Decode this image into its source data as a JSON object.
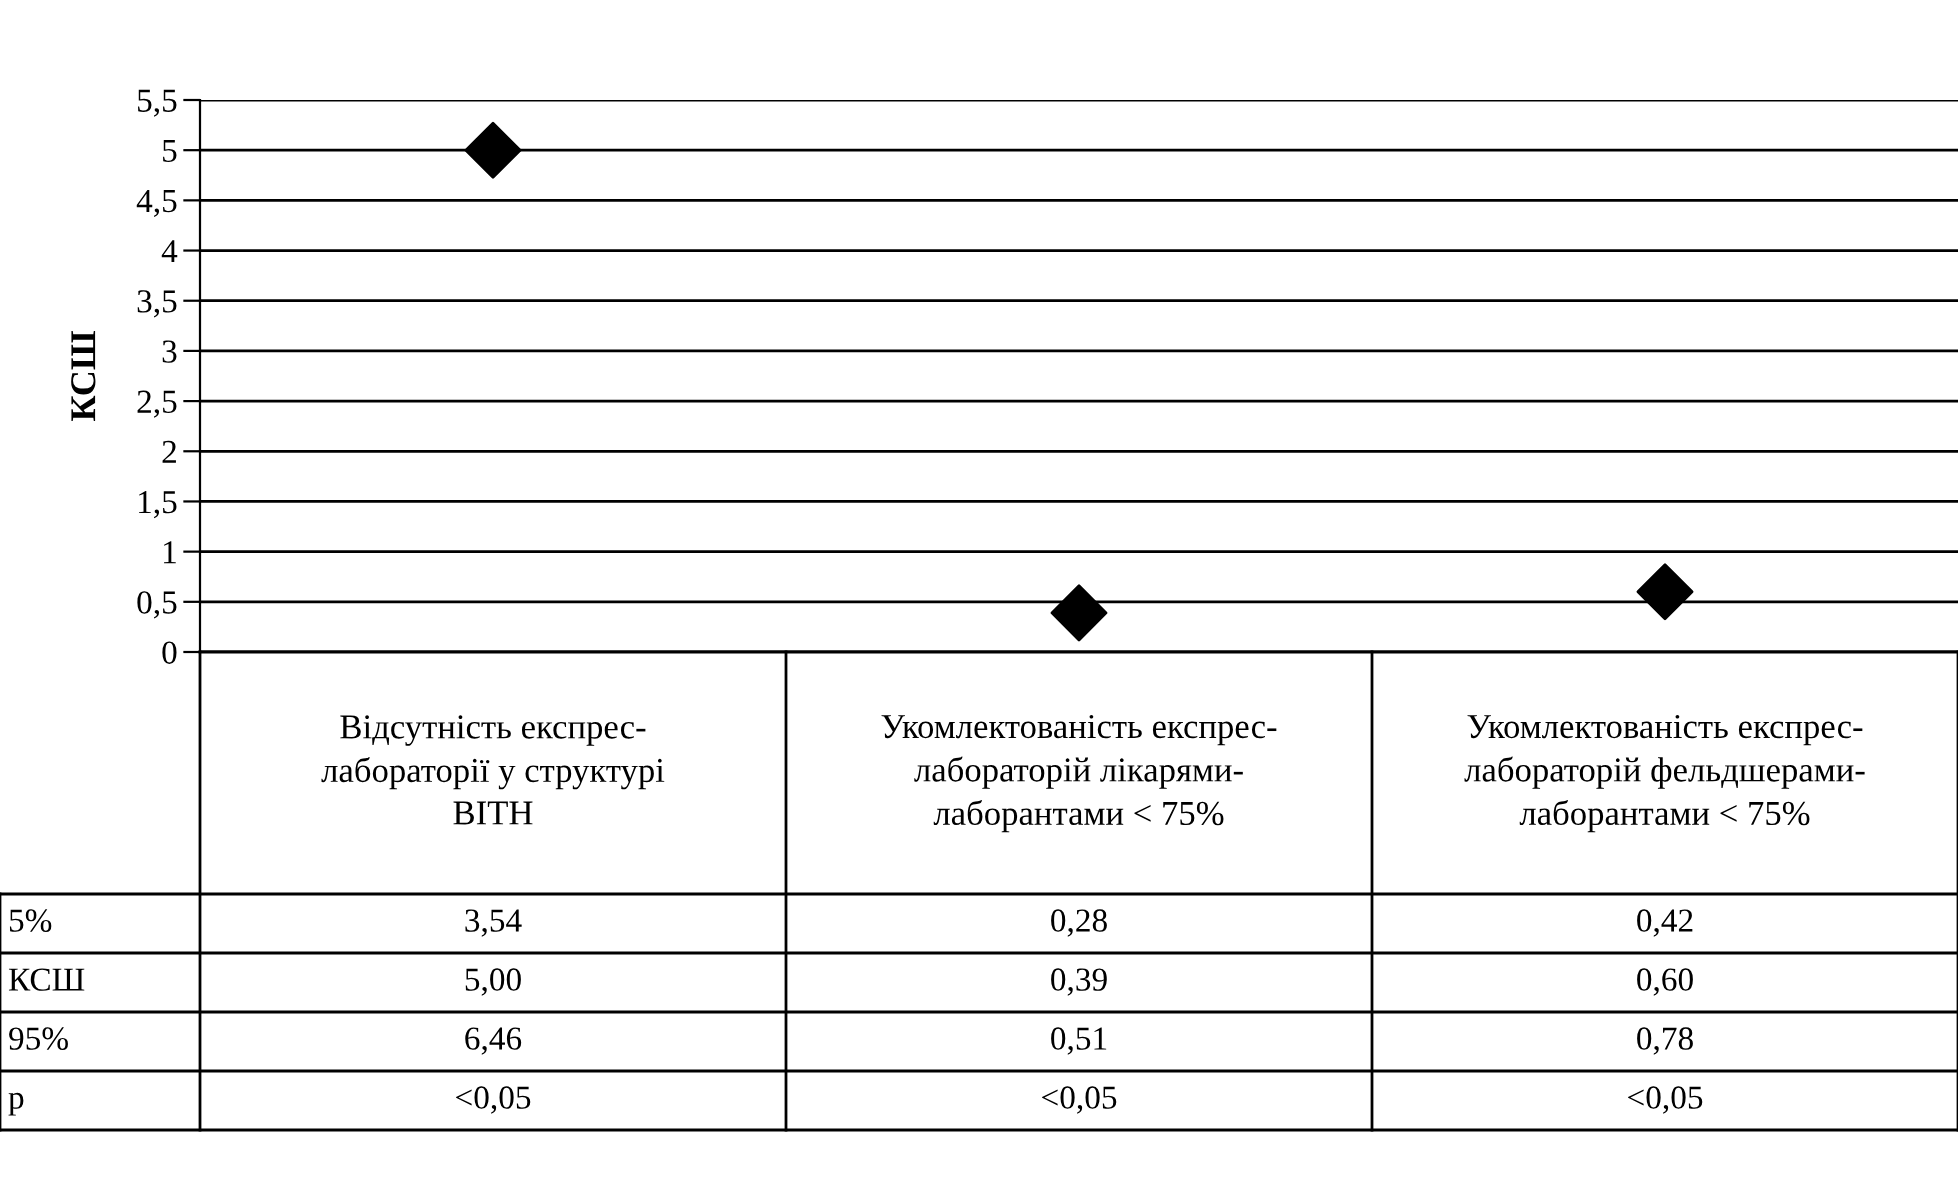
{
  "chart_data": {
    "type": "scatter",
    "ylabel": "КСШ",
    "categories": [
      "Відсутність експрес-\nлабораторії у структурі\nВІТН",
      "Укомлектованість експрес-\nлабораторій лікарями-\nлаборантами < 75%",
      "Укомлектованість експрес-\nлабораторій фельдшерами-\nлаборантами < 75%"
    ],
    "series": [
      {
        "name": "КСШ",
        "color": "#000000",
        "values": [
          5.0,
          0.39,
          0.6
        ],
        "value_labels": [
          "5,00",
          "0,39",
          "0,60"
        ]
      }
    ],
    "marker": "diamond",
    "ylim": [
      0,
      5.5
    ],
    "yticks": [
      0,
      {
        "value": 0.5,
        "label": "0,5"
      },
      1,
      {
        "value": 1.5,
        "label": "1,5"
      },
      2,
      {
        "value": 2.5,
        "label": "2,5"
      },
      3,
      {
        "value": 3.5,
        "label": "3,5"
      },
      4,
      {
        "value": 4.5,
        "label": "4,5"
      },
      5,
      {
        "value": 5.5,
        "label": "5,5"
      }
    ],
    "grid": "y",
    "legend": false,
    "annotations": [
      "5%",
      "3,54",
      "0,28",
      "0,42",
      "95%",
      "6,46",
      "0,51",
      "0,78",
      "p",
      "<0,05",
      "<0,05",
      "<0,05"
    ]
  }
}
